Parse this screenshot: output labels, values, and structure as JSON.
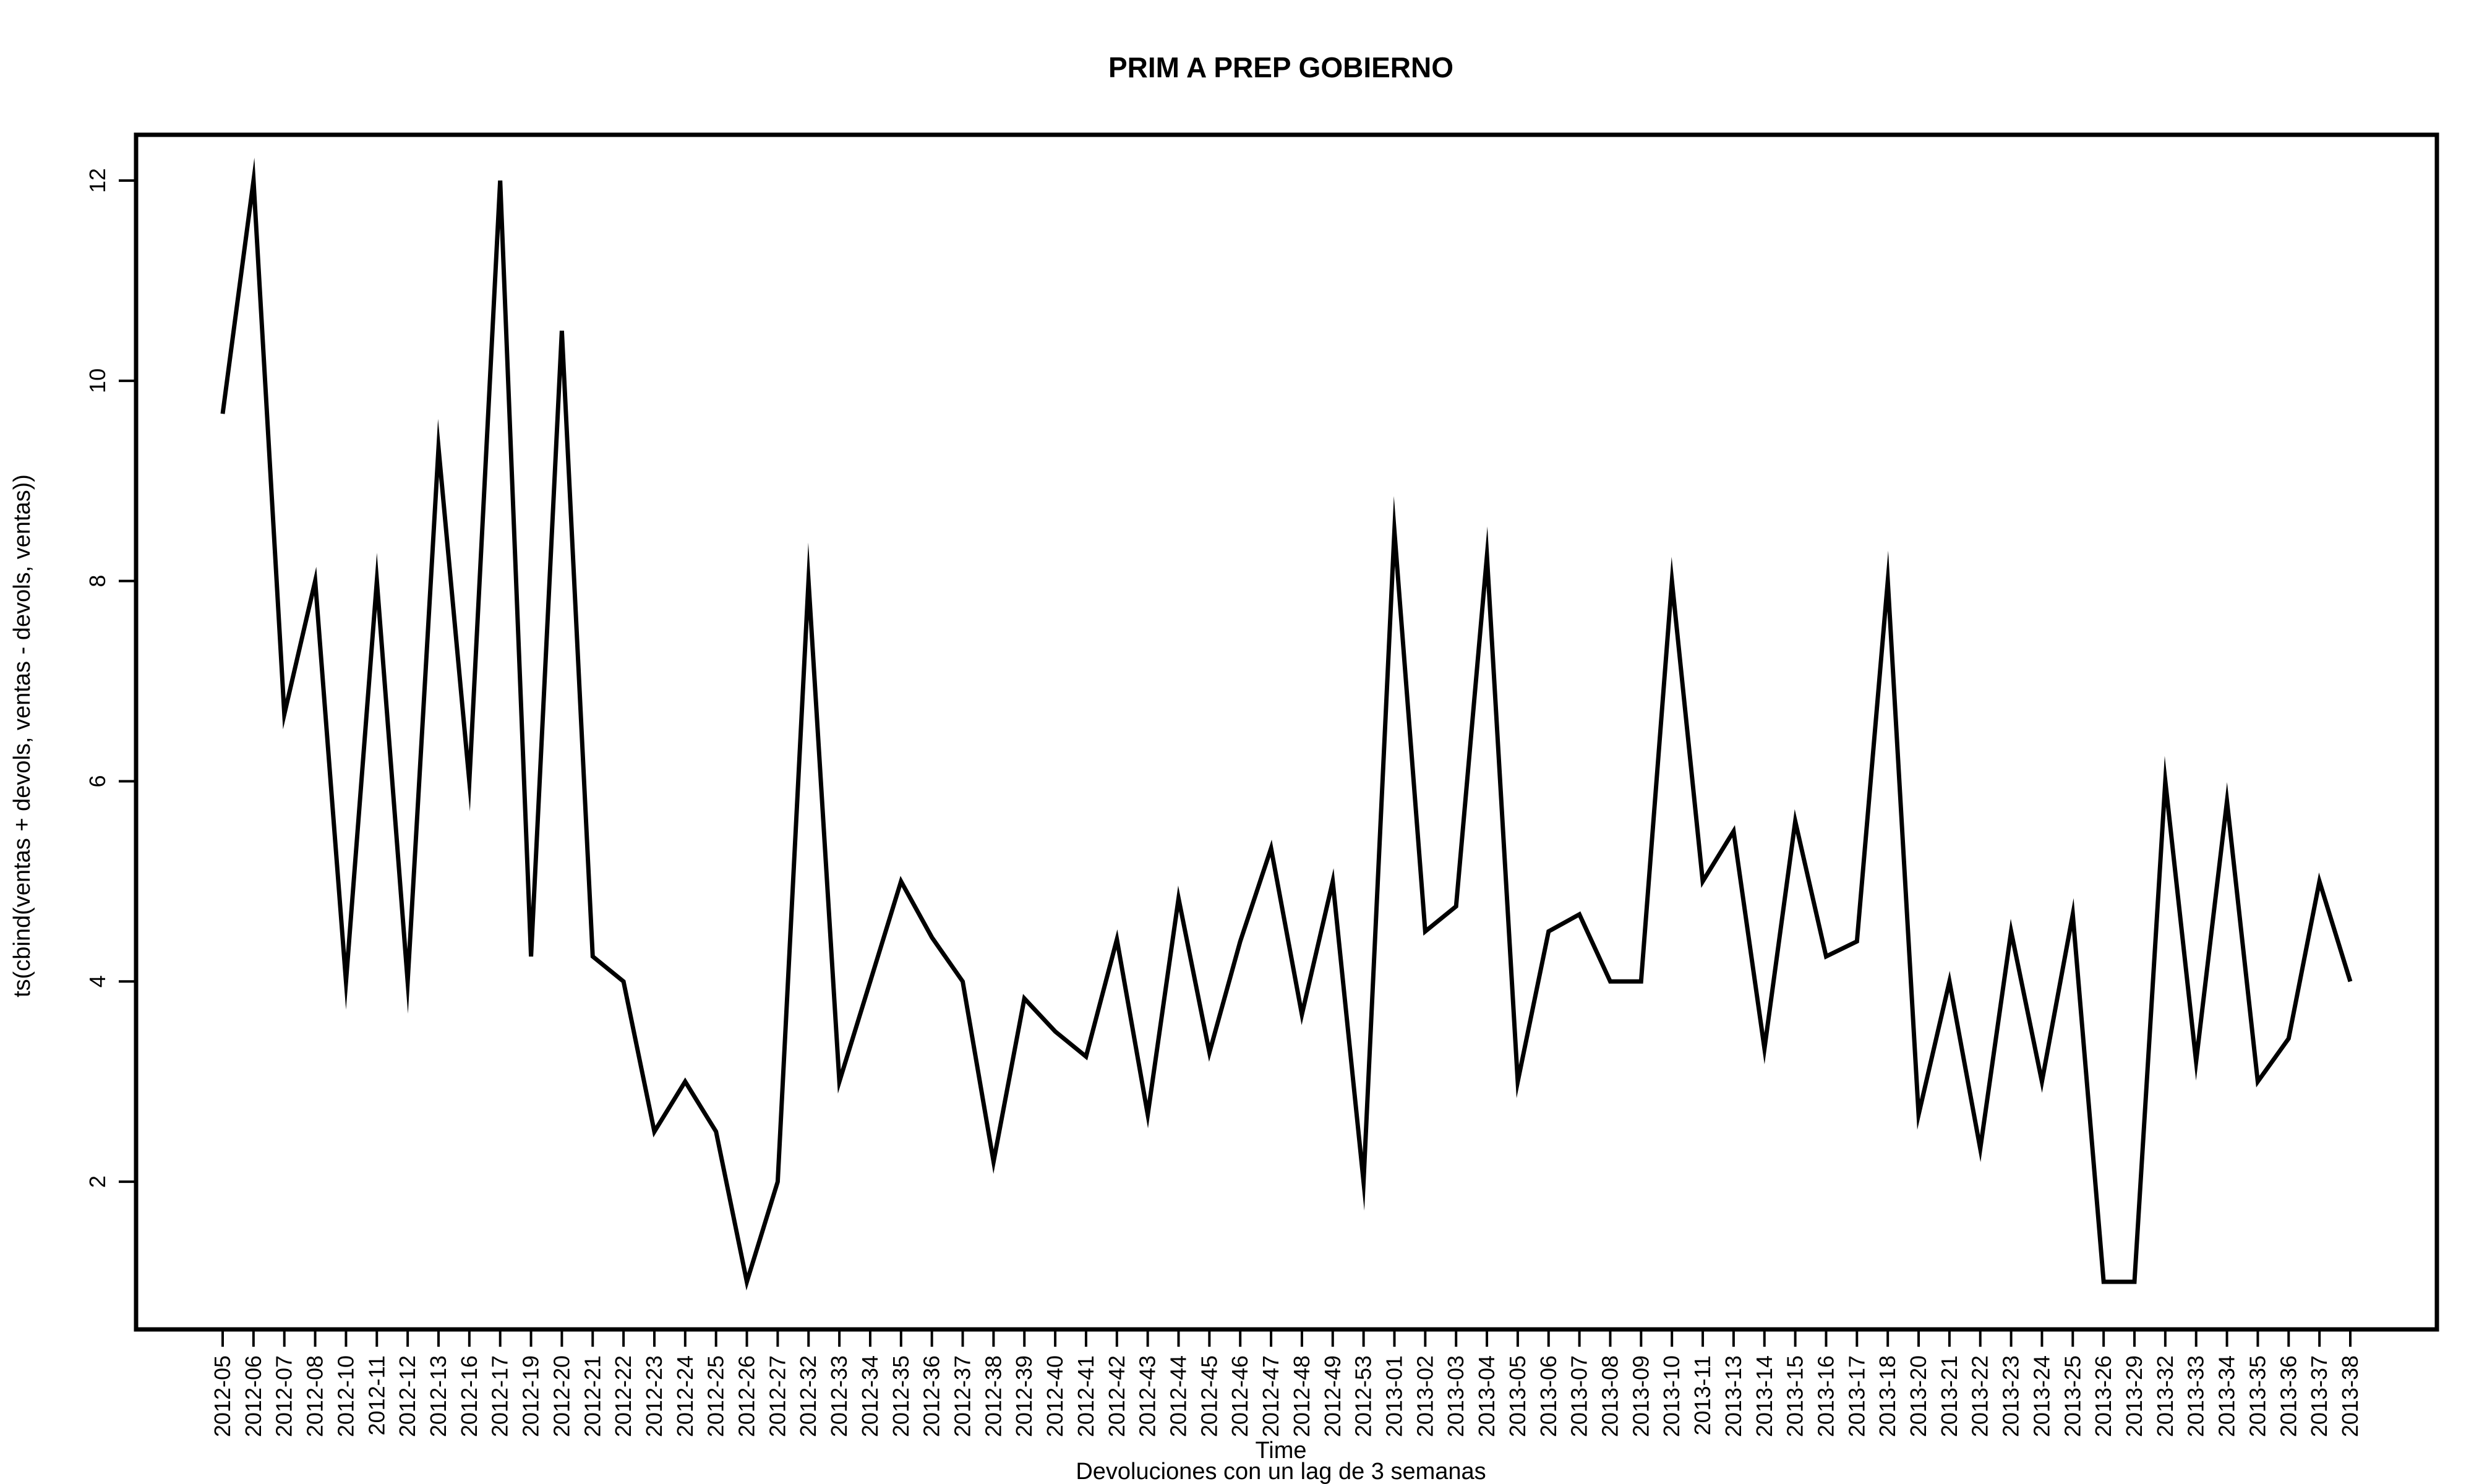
{
  "chart_data": {
    "type": "line",
    "title": "PRIM A PREP GOBIERNO",
    "xlabel": "Time",
    "sublabel": "Devoluciones con un lag de 3 semanas",
    "ylabel": "ts(cbind(ventas + devols, ventas - devols, ventas))",
    "ylim": [
      1,
      12
    ],
    "yticks": [
      2,
      4,
      6,
      8,
      10,
      12
    ],
    "grid": false,
    "categories": [
      "2012-05",
      "2012-06",
      "2012-07",
      "2012-08",
      "2012-10",
      "2012-11",
      "2012-12",
      "2012-13",
      "2012-16",
      "2012-17",
      "2012-19",
      "2012-20",
      "2012-21",
      "2012-22",
      "2012-23",
      "2012-24",
      "2012-25",
      "2012-26",
      "2012-27",
      "2012-32",
      "2012-33",
      "2012-34",
      "2012-35",
      "2012-36",
      "2012-37",
      "2012-38",
      "2012-39",
      "2012-40",
      "2012-41",
      "2012-42",
      "2012-43",
      "2012-44",
      "2012-45",
      "2012-46",
      "2012-47",
      "2012-48",
      "2012-49",
      "2012-53",
      "2013-01",
      "2013-02",
      "2013-03",
      "2013-04",
      "2013-05",
      "2013-06",
      "2013-07",
      "2013-08",
      "2013-09",
      "2013-10",
      "2013-11",
      "2013-13",
      "2013-14",
      "2013-15",
      "2013-16",
      "2013-17",
      "2013-18",
      "2013-20",
      "2013-21",
      "2013-22",
      "2013-23",
      "2013-24",
      "2013-25",
      "2013-26",
      "2013-29",
      "2013-32",
      "2013-33",
      "2013-34",
      "2013-35",
      "2013-36",
      "2013-37",
      "2013-38"
    ],
    "series": [
      {
        "color": "#000000",
        "values": [
          9.67,
          12,
          6.67,
          8,
          4,
          8,
          4,
          9.33,
          6,
          12,
          4.25,
          10.5,
          4.25,
          4,
          2.5,
          3,
          2.5,
          1,
          2,
          8,
          3,
          4,
          5,
          4.44,
          4,
          2.2,
          3.83,
          3.5,
          3.25,
          4.42,
          2.67,
          4.83,
          3.29,
          4.4,
          5.33,
          3.67,
          5,
          2,
          8.5,
          4.5,
          4.75,
          8.25,
          3,
          4.5,
          4.67,
          4,
          4,
          8,
          5,
          5.5,
          3.33,
          5.6,
          4.25,
          4.4,
          8,
          2.67,
          4,
          2.33,
          4.5,
          3,
          4.67,
          1,
          1,
          6,
          3.2,
          5.8,
          3,
          3.43,
          5,
          4
        ]
      }
    ]
  }
}
